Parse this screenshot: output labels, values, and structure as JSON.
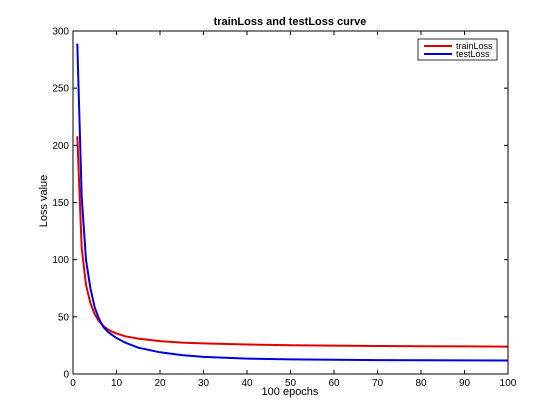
{
  "chart_data": {
    "type": "line",
    "title": "trainLoss and testLoss curve",
    "xlabel": "100 epochs",
    "ylabel": "Loss value",
    "xlim": [
      0,
      100
    ],
    "ylim": [
      0,
      300
    ],
    "xticks": [
      0,
      10,
      20,
      30,
      40,
      50,
      60,
      70,
      80,
      90,
      100
    ],
    "yticks": [
      0,
      50,
      100,
      150,
      200,
      250,
      300
    ],
    "grid": false,
    "legend_position": "top-right",
    "x": [
      1,
      2,
      3,
      4,
      5,
      6,
      7,
      8,
      9,
      10,
      12,
      15,
      20,
      25,
      30,
      40,
      50,
      60,
      70,
      80,
      90,
      100
    ],
    "series": [
      {
        "name": "trainLoss",
        "color": "#e00000",
        "values": [
          208,
          110,
          78,
          62,
          52,
          46,
          42,
          39,
          37,
          35.5,
          33,
          31,
          28.8,
          27.5,
          26.8,
          25.8,
          25.2,
          24.8,
          24.5,
          24.3,
          24.1,
          24.0
        ]
      },
      {
        "name": "testLoss",
        "color": "#0000e0",
        "values": [
          289,
          155,
          100,
          75,
          58,
          48,
          41,
          37,
          34,
          31.5,
          27.5,
          23,
          19,
          16.5,
          15,
          13.5,
          12.8,
          12.4,
          12.2,
          12.0,
          11.9,
          11.8
        ]
      }
    ]
  }
}
